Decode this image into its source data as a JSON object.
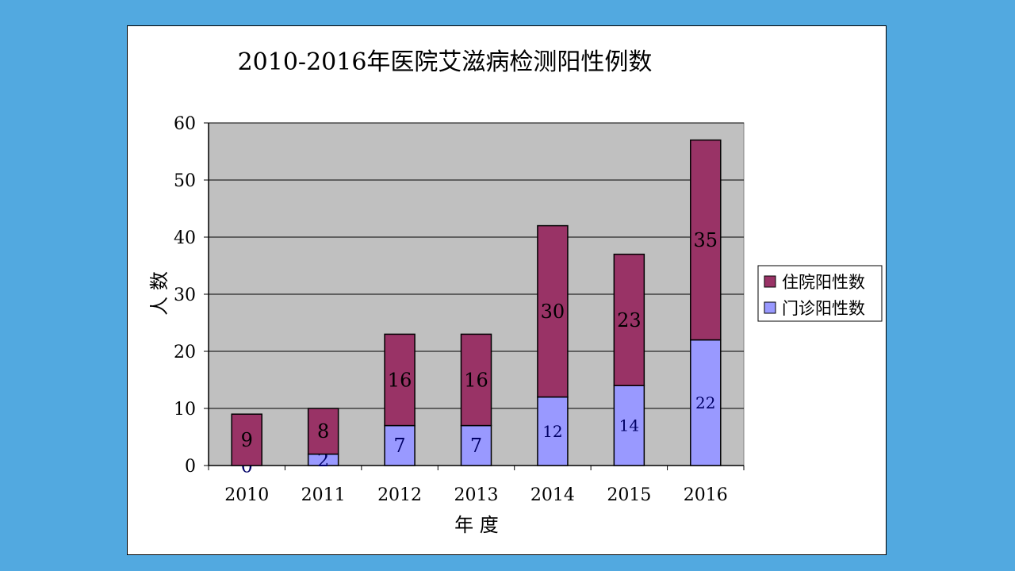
{
  "chart_data": {
    "type": "bar",
    "stacked": true,
    "title": "2010-2016年医院艾滋病检测阳性例数",
    "xlabel": "年 度",
    "ylabel": "人 数",
    "ylim": [
      0,
      60
    ],
    "yticks": [
      0,
      10,
      20,
      30,
      40,
      50,
      60
    ],
    "grid": true,
    "legend_position": "right",
    "categories": [
      "2010",
      "2011",
      "2012",
      "2013",
      "2014",
      "2015",
      "2016"
    ],
    "series": [
      {
        "name": "门诊阳性数",
        "color": "#9999ff",
        "values": [
          0,
          2,
          7,
          7,
          12,
          14,
          22
        ]
      },
      {
        "name": "住院阳性数",
        "color": "#993366",
        "values": [
          9,
          8,
          16,
          16,
          30,
          23,
          35
        ]
      }
    ],
    "legend_order": [
      "住院阳性数",
      "门诊阳性数"
    ],
    "plot_background": "#c0c0c0"
  }
}
